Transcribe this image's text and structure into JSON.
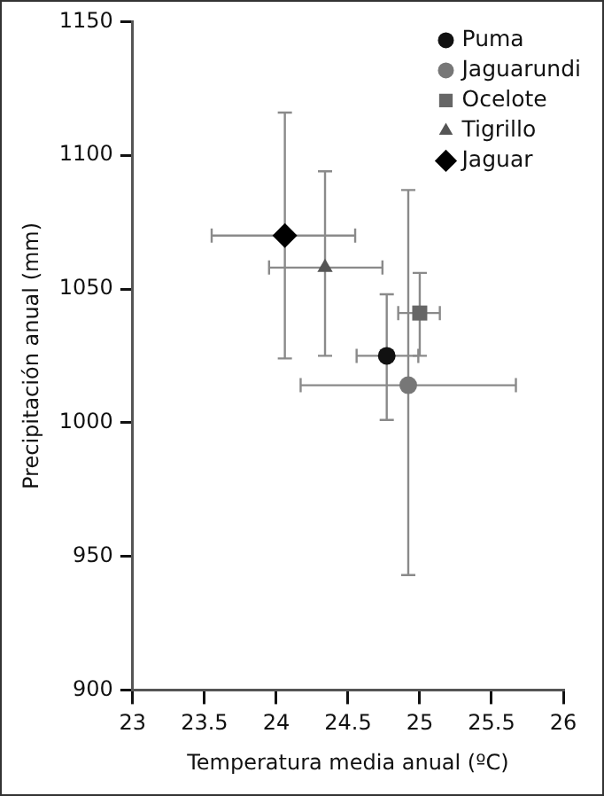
{
  "chart_data": {
    "type": "scatter",
    "xlabel": "Temperatura media anual (ºC)",
    "ylabel": "Precipitación anual (mm)",
    "xlim": [
      23,
      26
    ],
    "xticks": [
      23,
      23.5,
      24,
      24.5,
      25,
      25.5,
      26
    ],
    "ylim": [
      900,
      1150
    ],
    "yticks": [
      900,
      950,
      1000,
      1050,
      1100,
      1150
    ],
    "grid": false,
    "legend": "top right",
    "series": [
      {
        "name": "Puma",
        "color": "#111111",
        "marker": "circle",
        "x": [
          24.77
        ],
        "values": [
          1025
        ],
        "errors": [
          [
            1001,
            1048
          ]
        ],
        "xerrors": [
          [
            24.56,
            24.99
          ]
        ]
      },
      {
        "name": "Jaguarundi",
        "color": "#777777",
        "marker": "circle",
        "x": [
          24.92
        ],
        "values": [
          1014
        ],
        "errors": [
          [
            943,
            1087
          ]
        ],
        "xerrors": [
          [
            24.17,
            25.67
          ]
        ]
      },
      {
        "name": "Ocelote",
        "color": "#666666",
        "marker": "square",
        "x": [
          25.0
        ],
        "values": [
          1041
        ],
        "errors": [
          [
            1025,
            1056
          ]
        ],
        "xerrors": [
          [
            24.85,
            25.14
          ]
        ]
      },
      {
        "name": "Tigrillo",
        "color": "#555555",
        "marker": "triangle",
        "x": [
          24.34
        ],
        "values": [
          1058
        ],
        "errors": [
          [
            1025,
            1094
          ]
        ],
        "xerrors": [
          [
            23.95,
            24.74
          ]
        ]
      },
      {
        "name": "Jaguar",
        "color": "#000000",
        "marker": "diamond",
        "x": [
          24.06
        ],
        "values": [
          1070
        ],
        "errors": [
          [
            1024,
            1116
          ]
        ],
        "xerrors": [
          [
            23.55,
            24.55
          ]
        ]
      }
    ]
  }
}
